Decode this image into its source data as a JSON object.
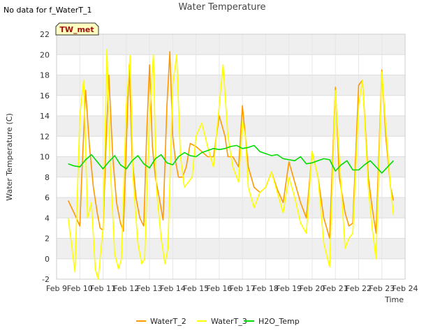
{
  "no_data_note": "No data for f_WaterT_1",
  "chart_data": {
    "type": "line",
    "title": "Water Temperature",
    "xlabel": "Time",
    "ylabel": "Water Temperature (C)",
    "site_tag": "TW_met",
    "ylim": [
      -2,
      22
    ],
    "yticks": [
      -2,
      0,
      2,
      4,
      6,
      8,
      10,
      12,
      14,
      16,
      18,
      20,
      22
    ],
    "xlim": [
      "Feb 9",
      "Feb 24"
    ],
    "xticks": [
      "Feb 9",
      "Feb 10",
      "Feb 11",
      "Feb 12",
      "Feb 13",
      "Feb 14",
      "Feb 15",
      "Feb 16",
      "Feb 17",
      "Feb 18",
      "Feb 19",
      "Feb 20",
      "Feb 21",
      "Feb 22",
      "Feb 23",
      "Feb 24"
    ],
    "grid": true,
    "legend_position": "bottom",
    "series": [
      {
        "name": "WaterT_2",
        "color": "#ff9900",
        "x": [
          "Feb 9 12:00",
          "Feb 9 18:00",
          "Feb 10 00:00",
          "Feb 10 02:00",
          "Feb 10 06:00",
          "Feb 10 10:00",
          "Feb 10 14:00",
          "Feb 10 18:00",
          "Feb 10 21:00",
          "Feb 11 00:00",
          "Feb 11 03:00",
          "Feb 11 06:00",
          "Feb 11 10:00",
          "Feb 11 14:00",
          "Feb 11 18:00",
          "Feb 11 21:00",
          "Feb 12 00:00",
          "Feb 12 03:00",
          "Feb 12 06:00",
          "Feb 12 10:00",
          "Feb 12 14:00",
          "Feb 12 18:00",
          "Feb 12 21:00",
          "Feb 13 00:00",
          "Feb 13 03:00",
          "Feb 13 06:00",
          "Feb 13 10:00",
          "Feb 13 14:00",
          "Feb 13 18:00",
          "Feb 13 21:00",
          "Feb 14 00:00",
          "Feb 14 03:00",
          "Feb 14 06:00",
          "Feb 14 10:00",
          "Feb 14 14:00",
          "Feb 14 18:00",
          "Feb 15 00:00",
          "Feb 15 06:00",
          "Feb 15 12:00",
          "Feb 15 18:00",
          "Feb 16 00:00",
          "Feb 16 06:00",
          "Feb 16 09:00",
          "Feb 16 14:00",
          "Feb 16 20:00",
          "Feb 17 00:00",
          "Feb 17 03:00",
          "Feb 17 06:00",
          "Feb 17 12:00",
          "Feb 17 18:00",
          "Feb 18 00:00",
          "Feb 18 06:00",
          "Feb 18 12:00",
          "Feb 18 18:00",
          "Feb 19 00:00",
          "Feb 19 06:00",
          "Feb 19 12:00",
          "Feb 19 18:00",
          "Feb 20 00:00",
          "Feb 20 06:00",
          "Feb 20 12:00",
          "Feb 20 18:00",
          "Feb 21 00:00",
          "Feb 21 04:00",
          "Feb 21 10:00",
          "Feb 21 14:00",
          "Feb 21 18:00",
          "Feb 22 00:00",
          "Feb 22 04:00",
          "Feb 22 10:00",
          "Feb 22 14:00",
          "Feb 22 18:00",
          "Feb 23 00:00",
          "Feb 23 04:00",
          "Feb 23 09:00",
          "Feb 23 12:00"
        ],
        "y": [
          5.7,
          4.5,
          3.2,
          8.0,
          16.5,
          11.0,
          7.0,
          4.5,
          3.0,
          2.8,
          11.0,
          18.0,
          10.0,
          5.5,
          3.5,
          2.7,
          11.0,
          19.0,
          10.0,
          6.0,
          4.0,
          3.2,
          12.0,
          19.0,
          11.0,
          8.0,
          6.0,
          3.8,
          15.0,
          20.3,
          12.0,
          9.5,
          8.0,
          8.0,
          9.0,
          11.3,
          11.0,
          10.5,
          10.0,
          10.0,
          14.0,
          12.0,
          10.0,
          10.0,
          9.0,
          15.0,
          12.0,
          9.0,
          7.0,
          6.5,
          7.0,
          8.5,
          6.8,
          5.5,
          9.5,
          7.5,
          5.5,
          4.0,
          10.5,
          8.0,
          4.0,
          2.0,
          16.8,
          8.0,
          4.5,
          3.2,
          3.5,
          17.0,
          17.5,
          8.0,
          5.0,
          2.5,
          18.5,
          12.0,
          7.0,
          5.7
        ]
      },
      {
        "name": "WaterT_3",
        "color": "#ffff00",
        "x": [
          "Feb 9 12:00",
          "Feb 9 16:00",
          "Feb 9 19:00",
          "Feb 10 00:00",
          "Feb 10 04:00",
          "Feb 10 08:00",
          "Feb 10 12:00",
          "Feb 10 16:00",
          "Feb 10 19:00",
          "Feb 11 00:00",
          "Feb 11 04:00",
          "Feb 11 07:00",
          "Feb 11 12:00",
          "Feb 11 16:00",
          "Feb 11 19:00",
          "Feb 12 00:00",
          "Feb 12 04:00",
          "Feb 12 07:00",
          "Feb 12 12:00",
          "Feb 12 16:00",
          "Feb 12 19:00",
          "Feb 13 00:00",
          "Feb 13 04:00",
          "Feb 13 07:00",
          "Feb 13 12:00",
          "Feb 13 16:00",
          "Feb 13 19:00",
          "Feb 14 00:00",
          "Feb 14 04:00",
          "Feb 14 08:00",
          "Feb 14 12:00",
          "Feb 14 16:00",
          "Feb 14 20:00",
          "Feb 15 00:00",
          "Feb 15 06:00",
          "Feb 15 12:00",
          "Feb 15 18:00",
          "Feb 16 00:00",
          "Feb 16 04:00",
          "Feb 16 09:00",
          "Feb 16 14:00",
          "Feb 16 20:00",
          "Feb 17 00:00",
          "Feb 17 03:00",
          "Feb 17 06:00",
          "Feb 17 12:00",
          "Feb 17 18:00",
          "Feb 18 00:00",
          "Feb 18 06:00",
          "Feb 18 12:00",
          "Feb 18 18:00",
          "Feb 19 00:00",
          "Feb 19 06:00",
          "Feb 19 12:00",
          "Feb 19 18:00",
          "Feb 20 00:00",
          "Feb 20 06:00",
          "Feb 20 12:00",
          "Feb 20 18:00",
          "Feb 21 00:00",
          "Feb 21 04:00",
          "Feb 21 10:00",
          "Feb 21 14:00",
          "Feb 21 18:00",
          "Feb 22 00:00",
          "Feb 22 04:00",
          "Feb 22 10:00",
          "Feb 22 14:00",
          "Feb 22 18:00",
          "Feb 23 00:00",
          "Feb 23 04:00",
          "Feb 23 09:00",
          "Feb 23 12:00"
        ],
        "y": [
          4.0,
          1.0,
          -1.3,
          14.0,
          17.5,
          4.0,
          5.5,
          -1.0,
          -2.0,
          3.0,
          20.5,
          10.0,
          0.5,
          -1.0,
          0.0,
          15.0,
          19.9,
          8.0,
          1.5,
          -0.5,
          0.0,
          14.0,
          20.0,
          7.0,
          2.0,
          -0.5,
          1.0,
          17.0,
          20.0,
          10.0,
          7.0,
          7.5,
          8.0,
          12.0,
          13.3,
          11.0,
          9.0,
          15.0,
          19.0,
          12.0,
          9.0,
          7.5,
          13.5,
          12.0,
          7.0,
          5.0,
          6.5,
          7.0,
          8.5,
          6.5,
          4.5,
          8.0,
          6.0,
          3.5,
          2.5,
          10.5,
          8.0,
          1.5,
          -0.8,
          16.5,
          10.0,
          1.0,
          2.0,
          2.5,
          15.0,
          17.5,
          7.0,
          3.0,
          0.0,
          18.3,
          13.0,
          7.0,
          4.3
        ]
      },
      {
        "name": "H2O_Temp",
        "color": "#00dd00",
        "x": [
          "Feb 9 12:00",
          "Feb 9 18:00",
          "Feb 10 00:00",
          "Feb 10 06:00",
          "Feb 10 12:00",
          "Feb 10 18:00",
          "Feb 11 00:00",
          "Feb 11 06:00",
          "Feb 11 12:00",
          "Feb 11 18:00",
          "Feb 12 00:00",
          "Feb 12 06:00",
          "Feb 12 12:00",
          "Feb 12 18:00",
          "Feb 13 00:00",
          "Feb 13 06:00",
          "Feb 13 12:00",
          "Feb 13 18:00",
          "Feb 14 00:00",
          "Feb 14 06:00",
          "Feb 14 12:00",
          "Feb 14 18:00",
          "Feb 15 00:00",
          "Feb 15 06:00",
          "Feb 15 12:00",
          "Feb 15 18:00",
          "Feb 16 00:00",
          "Feb 16 06:00",
          "Feb 16 12:00",
          "Feb 16 18:00",
          "Feb 17 00:00",
          "Feb 17 06:00",
          "Feb 17 12:00",
          "Feb 17 18:00",
          "Feb 18 00:00",
          "Feb 18 06:00",
          "Feb 18 12:00",
          "Feb 18 18:00",
          "Feb 19 00:00",
          "Feb 19 06:00",
          "Feb 19 12:00",
          "Feb 19 18:00",
          "Feb 20 00:00",
          "Feb 20 06:00",
          "Feb 20 12:00",
          "Feb 20 18:00",
          "Feb 21 00:00",
          "Feb 21 06:00",
          "Feb 21 12:00",
          "Feb 21 18:00",
          "Feb 22 00:00",
          "Feb 22 06:00",
          "Feb 22 12:00",
          "Feb 22 18:00",
          "Feb 23 00:00",
          "Feb 23 06:00",
          "Feb 23 12:00"
        ],
        "y": [
          9.3,
          9.1,
          9.0,
          9.7,
          10.2,
          9.5,
          8.8,
          9.5,
          10.1,
          9.2,
          8.8,
          9.6,
          10.1,
          9.3,
          8.9,
          9.8,
          10.2,
          9.4,
          9.2,
          10.0,
          10.4,
          10.1,
          10.0,
          10.4,
          10.6,
          10.8,
          10.7,
          10.8,
          11.0,
          11.1,
          10.8,
          10.9,
          11.1,
          10.5,
          10.3,
          10.1,
          10.2,
          9.8,
          9.7,
          9.6,
          10.0,
          9.3,
          9.4,
          9.6,
          9.8,
          9.7,
          8.6,
          9.2,
          9.6,
          8.7,
          8.7,
          9.2,
          9.6,
          9.0,
          8.4,
          9.0,
          9.6
        ]
      }
    ]
  }
}
